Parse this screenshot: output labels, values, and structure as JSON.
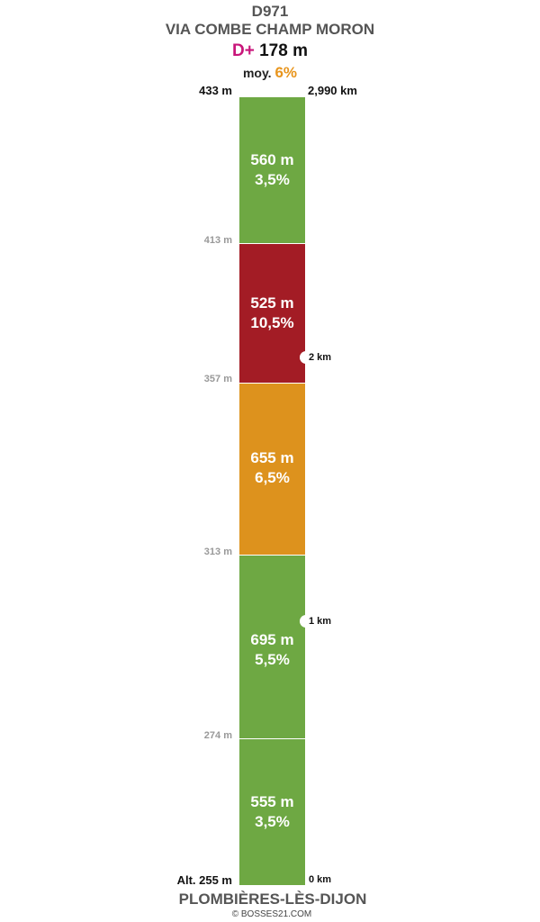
{
  "header": {
    "road": "D971",
    "climb_name": "VIA COMBE CHAMP MORON",
    "gain_label": "D+",
    "gain_value": "178 m",
    "avg_label": "moy.",
    "avg_value": "6%"
  },
  "top_labels": {
    "altitude": "433 m",
    "distance": "2,990 km"
  },
  "segments": [
    {
      "length": "560 m",
      "grade": "3,5%",
      "color": "#6ea843"
    },
    {
      "length": "525 m",
      "grade": "10,5%",
      "color": "#a31c25"
    },
    {
      "length": "655 m",
      "grade": "6,5%",
      "color": "#dd921d"
    },
    {
      "length": "695 m",
      "grade": "5,5%",
      "color": "#6ea843"
    },
    {
      "length": "555 m",
      "grade": "3,5%",
      "color": "#6ea843"
    }
  ],
  "altitude_marks": [
    "413 m",
    "357 m",
    "313 m",
    "274 m"
  ],
  "km_marks": [
    "2 km",
    "1 km"
  ],
  "bottom_labels": {
    "altitude": "Alt. 255 m",
    "distance": "0 km"
  },
  "footer": {
    "town": "PLOMBIÈRES-LÈS-DIJON",
    "credit": "© BOSSES21.COM"
  }
}
